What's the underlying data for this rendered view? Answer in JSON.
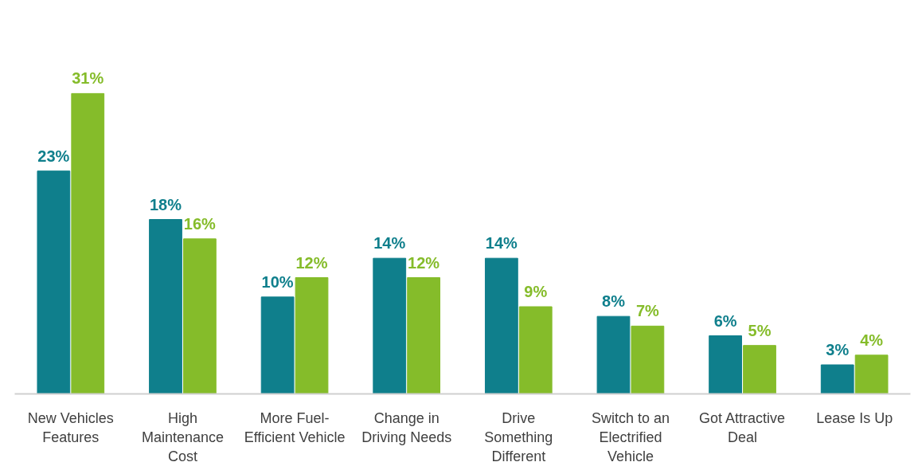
{
  "chart_data": {
    "type": "bar",
    "categories": [
      "New Vehicles\nFeatures",
      "High\nMaintenance\nCost",
      "More Fuel-\nEfficient Vehicle",
      "Change in\nDriving Needs",
      "Drive\nSomething\nDifferent",
      "Switch to an\nElectrified\nVehicle",
      "Got Attractive\nDeal",
      "Lease Is Up"
    ],
    "series": [
      {
        "color": "#0f7f8c",
        "values": [
          23,
          18,
          10,
          14,
          14,
          8,
          6,
          3
        ],
        "value_labels": [
          "23%",
          "18%",
          "10%",
          "14%",
          "14%",
          "8%",
          "6%",
          "3%"
        ]
      },
      {
        "color": "#85bc2a",
        "values": [
          31,
          16,
          12,
          12,
          9,
          7,
          5,
          4
        ],
        "value_labels": [
          "31%",
          "16%",
          "12%",
          "12%",
          "9%",
          "7%",
          "5%",
          "4%"
        ]
      }
    ],
    "grid": false
  }
}
